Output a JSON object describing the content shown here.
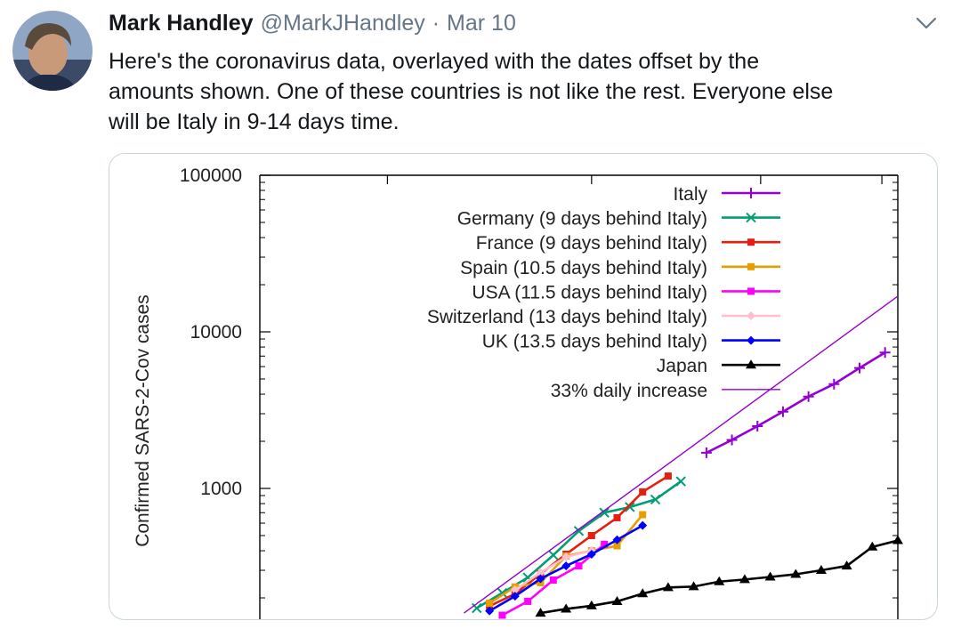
{
  "tweet": {
    "author_name": "Mark Handley",
    "author_handle": "@MarkJHandley",
    "separator": "·",
    "date": "Mar 10",
    "text": "Here's the coronavirus data, overlayed with the dates offset by the\namounts shown.  One of these countries is not like the rest.  Everyone else\nwill be Italy in 9-14 days time."
  },
  "chart_data": {
    "type": "line",
    "ylabel": "Confirmed SARS-2-Cov cases",
    "yscale": "log",
    "y_ticks": [
      {
        "value": 100000,
        "label": "100000"
      },
      {
        "value": 10000,
        "label": "10000"
      },
      {
        "value": 1000,
        "label": "1000"
      }
    ],
    "x_ticks": [
      0.2,
      0.52,
      0.785,
      0.975
    ],
    "ylim_visible": [
      160,
      100000
    ],
    "legend_position": "top-right",
    "series": [
      {
        "name": "Italy",
        "color": "#9400d3",
        "marker": "plus",
        "x": [
          0.7,
          0.74,
          0.78,
          0.82,
          0.86,
          0.9,
          0.94,
          0.98
        ],
        "y": [
          1690,
          2040,
          2500,
          3090,
          3860,
          4640,
          5880,
          7380
        ]
      },
      {
        "name": "Germany (9 days behind Italy)",
        "color": "#009e73",
        "marker": "x",
        "x": [
          0.34,
          0.38,
          0.42,
          0.46,
          0.5,
          0.54,
          0.58,
          0.62,
          0.66
        ],
        "y": [
          172,
          215,
          270,
          375,
          535,
          700,
          760,
          850,
          1110
        ]
      },
      {
        "name": "France (9 days behind Italy)",
        "color": "#e51e10",
        "marker": "square",
        "x": [
          0.36,
          0.4,
          0.44,
          0.48,
          0.52,
          0.56,
          0.6,
          0.64
        ],
        "y": [
          177,
          212,
          285,
          380,
          500,
          650,
          950,
          1200
        ]
      },
      {
        "name": "Spain (10.5 days behind Italy)",
        "color": "#e69f00",
        "marker": "square",
        "x": [
          0.36,
          0.4,
          0.44,
          0.48,
          0.52,
          0.56,
          0.6
        ],
        "y": [
          185,
          235,
          250,
          370,
          400,
          430,
          680
        ]
      },
      {
        "name": "USA (11.5 days behind Italy)",
        "color": "#ff00ff",
        "marker": "square",
        "x": [
          0.38,
          0.42,
          0.46,
          0.5,
          0.54
        ],
        "y": [
          155,
          190,
          260,
          320,
          440
        ]
      },
      {
        "name": "Switzerland (13 days behind Italy)",
        "color": "#ffc0cb",
        "marker": "diamond",
        "x": [
          0.4,
          0.44,
          0.48,
          0.52
        ],
        "y": [
          225,
          290,
          365,
          400
        ]
      },
      {
        "name": "UK (13.5 days behind Italy)",
        "color": "#0000ff",
        "marker": "diamond",
        "x": [
          0.36,
          0.4,
          0.44,
          0.48,
          0.52,
          0.56,
          0.6
        ],
        "y": [
          165,
          205,
          265,
          320,
          380,
          470,
          580
        ]
      },
      {
        "name": "Japan",
        "color": "#000000",
        "marker": "triangle",
        "x": [
          0.44,
          0.48,
          0.52,
          0.56,
          0.6,
          0.64,
          0.68,
          0.72,
          0.76,
          0.8,
          0.84,
          0.88,
          0.92,
          0.96,
          1.0
        ],
        "y": [
          160,
          170,
          178,
          190,
          213,
          233,
          236,
          254,
          262,
          272,
          283,
          300,
          320,
          423,
          465
        ]
      },
      {
        "name": "33% daily increase",
        "color": "#9400d3",
        "marker": "none",
        "x": [
          0.32,
          1.0
        ],
        "y": [
          160,
          16900
        ]
      }
    ]
  }
}
